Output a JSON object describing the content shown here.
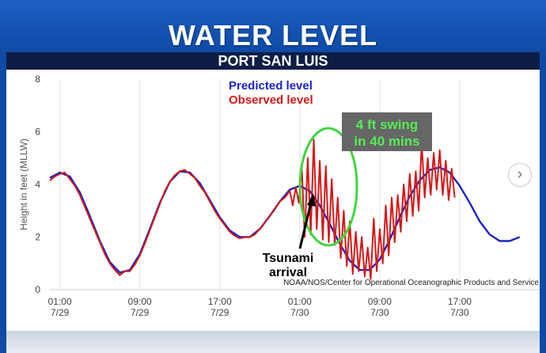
{
  "banner": {
    "title": "WATER LEVEL",
    "subtitle": "PORT SAN LUIS"
  },
  "colors": {
    "predicted": "#1a22c8",
    "observed": "#d41818",
    "annotation_green": "#3fd63f",
    "callout_bg": "#666666",
    "callout_text": "#55ee55"
  },
  "chart_data": {
    "type": "line",
    "ylabel": "Height in feet (MLLW)",
    "xlabel": "",
    "ylim": [
      0,
      8
    ],
    "yticks": [
      "0",
      "2",
      "4",
      "6",
      "8"
    ],
    "xticks": [
      {
        "time": "01:00",
        "date": "7/29",
        "hour": 1
      },
      {
        "time": "09:00",
        "date": "7/29",
        "hour": 9
      },
      {
        "time": "17:00",
        "date": "7/29",
        "hour": 17
      },
      {
        "time": "01:00",
        "date": "7/30",
        "hour": 25
      },
      {
        "time": "09:00",
        "date": "7/30",
        "hour": 33
      },
      {
        "time": "17:00",
        "date": "7/30",
        "hour": 41
      }
    ],
    "xlim_hours": [
      0,
      49
    ],
    "grid": "vertical",
    "legend_position": "top-left",
    "series": [
      {
        "name": "Predicted level",
        "points": [
          [
            0,
            4.25
          ],
          [
            1,
            4.45
          ],
          [
            2,
            4.3
          ],
          [
            3,
            3.7
          ],
          [
            4,
            2.8
          ],
          [
            5,
            1.85
          ],
          [
            6,
            1.05
          ],
          [
            7,
            0.65
          ],
          [
            8,
            0.75
          ],
          [
            9,
            1.35
          ],
          [
            10,
            2.3
          ],
          [
            11,
            3.3
          ],
          [
            12,
            4.1
          ],
          [
            13,
            4.5
          ],
          [
            14,
            4.45
          ],
          [
            15,
            4.05
          ],
          [
            16,
            3.4
          ],
          [
            17,
            2.75
          ],
          [
            18,
            2.25
          ],
          [
            19,
            2.0
          ],
          [
            20,
            2.0
          ],
          [
            21,
            2.3
          ],
          [
            22,
            2.8
          ],
          [
            23,
            3.35
          ],
          [
            24,
            3.8
          ],
          [
            25,
            3.95
          ],
          [
            26,
            3.75
          ],
          [
            27,
            3.2
          ],
          [
            28,
            2.5
          ],
          [
            29,
            1.75
          ],
          [
            30,
            1.1
          ],
          [
            31,
            0.75
          ],
          [
            32,
            0.75
          ],
          [
            33,
            1.15
          ],
          [
            34,
            1.9
          ],
          [
            35,
            2.75
          ],
          [
            36,
            3.55
          ],
          [
            37,
            4.15
          ],
          [
            38,
            4.55
          ],
          [
            39,
            4.65
          ],
          [
            40,
            4.45
          ],
          [
            41,
            3.95
          ],
          [
            42,
            3.3
          ],
          [
            43,
            2.6
          ],
          [
            44,
            2.1
          ],
          [
            45,
            1.85
          ],
          [
            46,
            1.85
          ],
          [
            47,
            2.0
          ]
        ]
      },
      {
        "name": "Observed level",
        "points": [
          [
            0,
            4.15
          ],
          [
            0.5,
            4.3
          ],
          [
            1,
            4.4
          ],
          [
            1.5,
            4.45
          ],
          [
            2,
            4.2
          ],
          [
            2.5,
            3.95
          ],
          [
            3,
            3.6
          ],
          [
            3.5,
            3.15
          ],
          [
            4,
            2.7
          ],
          [
            4.5,
            2.25
          ],
          [
            5,
            1.8
          ],
          [
            5.5,
            1.35
          ],
          [
            6,
            1.0
          ],
          [
            6.5,
            0.75
          ],
          [
            7,
            0.55
          ],
          [
            7.5,
            0.7
          ],
          [
            8,
            0.7
          ],
          [
            8.5,
            0.95
          ],
          [
            9,
            1.3
          ],
          [
            9.5,
            1.75
          ],
          [
            10,
            2.25
          ],
          [
            10.5,
            2.75
          ],
          [
            11,
            3.25
          ],
          [
            11.5,
            3.75
          ],
          [
            12,
            4.1
          ],
          [
            12.5,
            4.35
          ],
          [
            13,
            4.5
          ],
          [
            13.5,
            4.55
          ],
          [
            14,
            4.4
          ],
          [
            14.5,
            4.25
          ],
          [
            15,
            3.95
          ],
          [
            15.5,
            3.7
          ],
          [
            16,
            3.35
          ],
          [
            16.5,
            3.0
          ],
          [
            17,
            2.7
          ],
          [
            17.5,
            2.45
          ],
          [
            18,
            2.2
          ],
          [
            18.5,
            2.05
          ],
          [
            19,
            1.95
          ],
          [
            19.5,
            2.0
          ],
          [
            20,
            2.0
          ],
          [
            20.5,
            2.1
          ],
          [
            21,
            2.3
          ],
          [
            21.5,
            2.55
          ],
          [
            22,
            2.8
          ],
          [
            22.5,
            3.05
          ],
          [
            23,
            3.35
          ],
          [
            23.5,
            3.5
          ],
          [
            24,
            3.75
          ],
          [
            24.3,
            3.2
          ],
          [
            24.6,
            3.9
          ],
          [
            24.9,
            3.3
          ],
          [
            25.2,
            4.7
          ],
          [
            25.5,
            2.0
          ],
          [
            25.8,
            5.0
          ],
          [
            26.1,
            2.1
          ],
          [
            26.4,
            5.7
          ],
          [
            26.7,
            2.3
          ],
          [
            27.0,
            4.9
          ],
          [
            27.3,
            1.9
          ],
          [
            27.6,
            4.7
          ],
          [
            27.9,
            1.8
          ],
          [
            28.2,
            4.2
          ],
          [
            28.5,
            1.7
          ],
          [
            28.8,
            3.5
          ],
          [
            29.1,
            1.2
          ],
          [
            29.4,
            3.0
          ],
          [
            29.7,
            0.9
          ],
          [
            30.0,
            2.6
          ],
          [
            30.3,
            0.6
          ],
          [
            30.6,
            2.2
          ],
          [
            30.9,
            0.7
          ],
          [
            31.2,
            2.0
          ],
          [
            31.5,
            0.5
          ],
          [
            31.8,
            1.6
          ],
          [
            32.1,
            0.4
          ],
          [
            32.4,
            2.7
          ],
          [
            32.7,
            0.7
          ],
          [
            33.0,
            2.3
          ],
          [
            33.3,
            1.0
          ],
          [
            33.6,
            3.2
          ],
          [
            33.9,
            1.3
          ],
          [
            34.2,
            3.5
          ],
          [
            34.5,
            1.8
          ],
          [
            34.8,
            3.6
          ],
          [
            35.1,
            2.2
          ],
          [
            35.4,
            4.0
          ],
          [
            35.7,
            2.6
          ],
          [
            36.0,
            4.4
          ],
          [
            36.3,
            2.8
          ],
          [
            36.6,
            4.5
          ],
          [
            36.9,
            3.0
          ],
          [
            37.2,
            5.6
          ],
          [
            37.5,
            3.5
          ],
          [
            37.8,
            5.0
          ],
          [
            38.1,
            3.6
          ],
          [
            38.4,
            5.2
          ],
          [
            38.7,
            3.8
          ],
          [
            39.0,
            5.3
          ],
          [
            39.3,
            3.6
          ],
          [
            39.6,
            4.9
          ],
          [
            39.9,
            3.4
          ],
          [
            40.2,
            4.6
          ],
          [
            40.5,
            3.5
          ]
        ]
      }
    ],
    "annotations": {
      "callout": [
        "4 ft swing",
        "in 40 mins"
      ],
      "arrival": [
        "Tsunami",
        "arrival"
      ],
      "source": "NOAA/NOS/Center for Operational Oceanographic Products and Service"
    }
  },
  "nav": {
    "next_icon": "chevron-right-icon",
    "next_glyph": "›"
  }
}
